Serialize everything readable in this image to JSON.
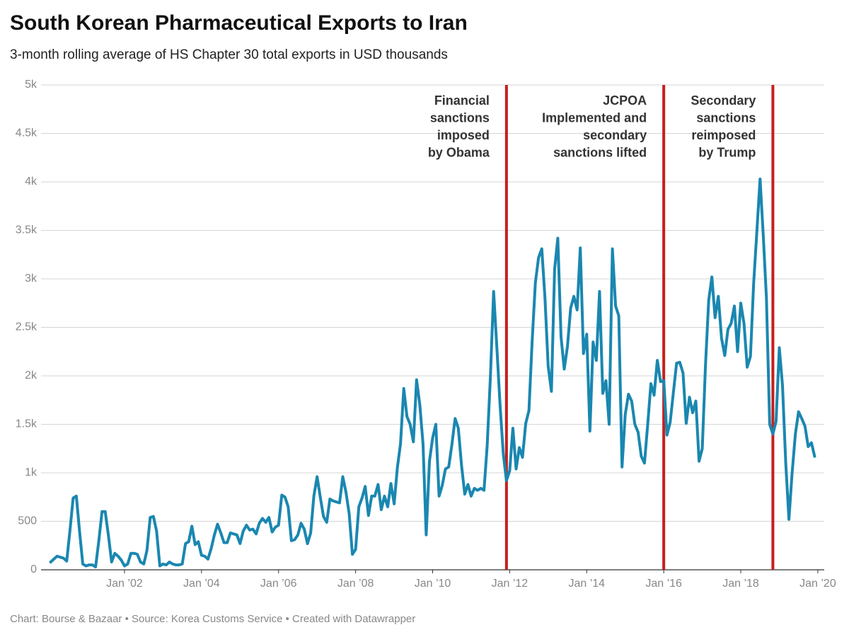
{
  "chart_data": {
    "type": "line",
    "title": "South Korean Pharmaceutical Exports to Iran",
    "subtitle": "3-month rolling average of HS Chapter 30 total exports in USD thousands",
    "footer": "Chart: Bourse & Bazaar • Source: Korea Customs Service • Created with Datawrapper",
    "x": [
      "2000-02",
      "2000-03",
      "2000-04",
      "2000-05",
      "2000-06",
      "2000-07",
      "2000-08",
      "2000-09",
      "2000-10",
      "2000-11",
      "2000-12",
      "2001-01",
      "2001-02",
      "2001-03",
      "2001-04",
      "2001-05",
      "2001-06",
      "2001-07",
      "2001-08",
      "2001-09",
      "2001-10",
      "2001-11",
      "2001-12",
      "2002-01",
      "2002-02",
      "2002-03",
      "2002-04",
      "2002-05",
      "2002-06",
      "2002-07",
      "2002-08",
      "2002-09",
      "2002-10",
      "2002-11",
      "2002-12",
      "2003-01",
      "2003-02",
      "2003-03",
      "2003-04",
      "2003-05",
      "2003-06",
      "2003-07",
      "2003-08",
      "2003-09",
      "2003-10",
      "2003-11",
      "2003-12",
      "2004-01",
      "2004-02",
      "2004-03",
      "2004-04",
      "2004-05",
      "2004-06",
      "2004-07",
      "2004-08",
      "2004-09",
      "2004-10",
      "2004-11",
      "2004-12",
      "2005-01",
      "2005-02",
      "2005-03",
      "2005-04",
      "2005-05",
      "2005-06",
      "2005-07",
      "2005-08",
      "2005-09",
      "2005-10",
      "2005-11",
      "2005-12",
      "2006-01",
      "2006-02",
      "2006-03",
      "2006-04",
      "2006-05",
      "2006-06",
      "2006-07",
      "2006-08",
      "2006-09",
      "2006-10",
      "2006-11",
      "2006-12",
      "2007-01",
      "2007-02",
      "2007-03",
      "2007-04",
      "2007-05",
      "2007-06",
      "2007-07",
      "2007-08",
      "2007-09",
      "2007-10",
      "2007-11",
      "2007-12",
      "2008-01",
      "2008-02",
      "2008-03",
      "2008-04",
      "2008-05",
      "2008-06",
      "2008-07",
      "2008-08",
      "2008-09",
      "2008-10",
      "2008-11",
      "2008-12",
      "2009-01",
      "2009-02",
      "2009-03",
      "2009-04",
      "2009-05",
      "2009-06",
      "2009-07",
      "2009-08",
      "2009-09",
      "2009-10",
      "2009-11",
      "2009-12",
      "2010-01",
      "2010-02",
      "2010-03",
      "2010-04",
      "2010-05",
      "2010-06",
      "2010-07",
      "2010-08",
      "2010-09",
      "2010-10",
      "2010-11",
      "2010-12",
      "2011-01",
      "2011-02",
      "2011-03",
      "2011-04",
      "2011-05",
      "2011-06",
      "2011-07",
      "2011-08",
      "2011-09",
      "2011-10",
      "2011-11",
      "2011-12",
      "2012-01",
      "2012-02",
      "2012-03",
      "2012-04",
      "2012-05",
      "2012-06",
      "2012-07",
      "2012-08",
      "2012-09",
      "2012-10",
      "2012-11",
      "2012-12",
      "2013-01",
      "2013-02",
      "2013-03",
      "2013-04",
      "2013-05",
      "2013-06",
      "2013-07",
      "2013-08",
      "2013-09",
      "2013-10",
      "2013-11",
      "2013-12",
      "2014-01",
      "2014-02",
      "2014-03",
      "2014-04",
      "2014-05",
      "2014-06",
      "2014-07",
      "2014-08",
      "2014-09",
      "2014-10",
      "2014-11",
      "2014-12",
      "2015-01",
      "2015-02",
      "2015-03",
      "2015-04",
      "2015-05",
      "2015-06",
      "2015-07",
      "2015-08",
      "2015-09",
      "2015-10",
      "2015-11",
      "2015-12",
      "2016-01",
      "2016-02",
      "2016-03",
      "2016-04",
      "2016-05",
      "2016-06",
      "2016-07",
      "2016-08",
      "2016-09",
      "2016-10",
      "2016-11",
      "2016-12",
      "2017-01",
      "2017-02",
      "2017-03",
      "2017-04",
      "2017-05",
      "2017-06",
      "2017-07",
      "2017-08",
      "2017-09",
      "2017-10",
      "2017-11",
      "2017-12",
      "2018-01",
      "2018-02",
      "2018-03",
      "2018-04",
      "2018-05",
      "2018-06",
      "2018-07",
      "2018-08",
      "2018-09",
      "2018-10",
      "2018-11",
      "2018-12",
      "2019-01",
      "2019-02",
      "2019-03",
      "2019-04",
      "2019-05",
      "2019-06",
      "2019-07",
      "2019-08",
      "2019-09",
      "2019-10",
      "2019-11",
      "2019-12"
    ],
    "series": [
      {
        "name": "Exports",
        "color": "#1a87b0",
        "values": [
          80,
          110,
          140,
          130,
          120,
          90,
          400,
          740,
          760,
          400,
          60,
          40,
          50,
          50,
          30,
          300,
          600,
          600,
          350,
          80,
          170,
          140,
          100,
          40,
          60,
          170,
          170,
          160,
          80,
          60,
          200,
          540,
          550,
          400,
          40,
          60,
          50,
          80,
          60,
          50,
          50,
          60,
          270,
          290,
          450,
          260,
          290,
          150,
          140,
          110,
          220,
          360,
          470,
          380,
          280,
          280,
          380,
          370,
          360,
          270,
          400,
          460,
          410,
          420,
          370,
          480,
          530,
          490,
          540,
          390,
          440,
          460,
          770,
          750,
          650,
          300,
          310,
          360,
          480,
          420,
          270,
          380,
          760,
          960,
          750,
          550,
          490,
          730,
          710,
          700,
          690,
          960,
          800,
          580,
          160,
          210,
          650,
          740,
          860,
          560,
          760,
          760,
          880,
          620,
          760,
          650,
          890,
          680,
          1050,
          1300,
          1870,
          1580,
          1500,
          1320,
          1960,
          1700,
          1300,
          360,
          1120,
          1360,
          1500,
          760,
          870,
          1040,
          1060,
          1290,
          1560,
          1460,
          1080,
          780,
          880,
          760,
          840,
          820,
          840,
          820,
          1280,
          2000,
          2870,
          2300,
          1700,
          1200,
          920,
          1020,
          1460,
          1040,
          1260,
          1160,
          1510,
          1640,
          2350,
          2960,
          3220,
          3310,
          2800,
          2100,
          1840,
          3100,
          3420,
          2400,
          2070,
          2300,
          2700,
          2820,
          2680,
          3320,
          2230,
          2430,
          1430,
          2350,
          2160,
          2870,
          1820,
          1950,
          1500,
          3310,
          2720,
          2620,
          1060,
          1600,
          1810,
          1740,
          1500,
          1420,
          1170,
          1100,
          1500,
          1920,
          1800,
          2160,
          1940,
          1950,
          1390,
          1520,
          1830,
          2130,
          2140,
          2030,
          1510,
          1780,
          1620,
          1740,
          1120,
          1250,
          2100,
          2780,
          3020,
          2600,
          2820,
          2390,
          2210,
          2480,
          2540,
          2720,
          2250,
          2750,
          2540,
          2090,
          2200,
          2950,
          3480,
          4030,
          3450,
          2800,
          1500,
          1400,
          1530,
          2290,
          1900,
          1100,
          520,
          1000,
          1400,
          1630,
          1560,
          1480,
          1270,
          1310,
          1170
        ]
      }
    ],
    "xlim": [
      "1999-11",
      "2020-03"
    ],
    "xticks": [
      {
        "value": "2002-01",
        "label": "Jan ’02"
      },
      {
        "value": "2004-01",
        "label": "Jan ’04"
      },
      {
        "value": "2006-01",
        "label": "Jan ’06"
      },
      {
        "value": "2008-01",
        "label": "Jan ’08"
      },
      {
        "value": "2010-01",
        "label": "Jan ’10"
      },
      {
        "value": "2012-01",
        "label": "Jan ’12"
      },
      {
        "value": "2014-01",
        "label": "Jan ’14"
      },
      {
        "value": "2016-01",
        "label": "Jan ’16"
      },
      {
        "value": "2018-01",
        "label": "Jan ’18"
      },
      {
        "value": "2020-01",
        "label": "Jan ’20"
      }
    ],
    "ylim": [
      0,
      5000
    ],
    "yticks": [
      0,
      500,
      {
        "value": 1000,
        "label": "1k"
      },
      {
        "value": 1500,
        "label": "1.5k"
      },
      {
        "value": 2000,
        "label": "2k"
      },
      {
        "value": 2500,
        "label": "2.5k"
      },
      {
        "value": 3000,
        "label": "3k"
      },
      {
        "value": 3500,
        "label": "3.5k"
      },
      {
        "value": 4000,
        "label": "4k"
      },
      {
        "value": 4500,
        "label": "4.5k"
      },
      {
        "value": 5000,
        "label": "5k"
      }
    ],
    "grid": true,
    "annotations": [
      {
        "x": "2011-12",
        "color": "#c71e1d",
        "text": [
          "Financial",
          "sanctions",
          "imposed",
          "by Obama"
        ]
      },
      {
        "x": "2016-01",
        "color": "#c71e1d",
        "text": [
          "JCPOA",
          "Implemented and",
          "secondary",
          "sanctions lifted"
        ]
      },
      {
        "x": "2018-11",
        "color": "#c71e1d",
        "text": [
          "Secondary",
          "sanctions",
          "reimposed",
          "by Trump"
        ]
      }
    ]
  }
}
